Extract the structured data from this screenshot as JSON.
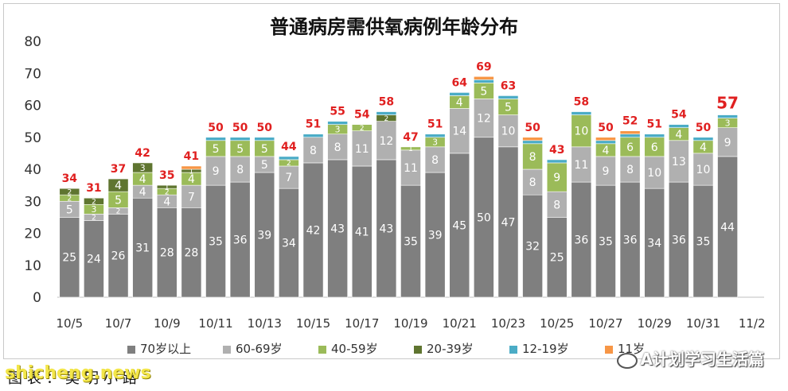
{
  "chart_data": {
    "type": "bar",
    "stacked": true,
    "title": "普通病房需供氧病例年龄分布",
    "categories": [
      "10/5",
      "10/6",
      "10/7",
      "10/8",
      "10/9",
      "10/10",
      "10/11",
      "10/12",
      "10/13",
      "10/14",
      "10/15",
      "10/16",
      "10/17",
      "10/18",
      "10/19",
      "10/20",
      "10/21",
      "10/22",
      "10/23",
      "10/24",
      "10/25",
      "10/26",
      "10/27",
      "10/28",
      "10/29",
      "10/30",
      "10/31",
      "11/1"
    ],
    "x_tick_labels": [
      "10/5",
      "10/7",
      "10/9",
      "10/11",
      "10/13",
      "10/15",
      "10/17",
      "10/19",
      "10/21",
      "10/23",
      "10/25",
      "10/27",
      "10/29",
      "10/31",
      "11/2"
    ],
    "ylim": [
      0,
      80
    ],
    "yticks": [
      0,
      10,
      20,
      30,
      40,
      50,
      60,
      70,
      80
    ],
    "grid": false,
    "legend_position": "bottom",
    "totals": [
      34,
      31,
      37,
      42,
      35,
      41,
      50,
      50,
      50,
      44,
      51,
      55,
      54,
      58,
      47,
      51,
      64,
      69,
      63,
      50,
      43,
      58,
      50,
      52,
      51,
      54,
      50,
      57
    ],
    "series": [
      {
        "name": "70岁以上",
        "color": "#7f7f7f",
        "labels": true,
        "values": [
          25,
          24,
          26,
          31,
          28,
          28,
          35,
          36,
          39,
          34,
          42,
          43,
          41,
          43,
          35,
          39,
          45,
          50,
          47,
          32,
          25,
          36,
          35,
          36,
          34,
          36,
          35,
          44
        ]
      },
      {
        "name": "60-69岁",
        "color": "#b0b0b0",
        "labels": true,
        "values": [
          5,
          2,
          2,
          4,
          4,
          7,
          9,
          8,
          5,
          7,
          8,
          8,
          11,
          12,
          11,
          8,
          14,
          12,
          10,
          8,
          8,
          11,
          9,
          8,
          10,
          13,
          10,
          9
        ]
      },
      {
        "name": "40-59岁",
        "color": "#9bbb59",
        "labels": true,
        "values": [
          2,
          3,
          5,
          4,
          2,
          4,
          5,
          5,
          5,
          2,
          0,
          3,
          2,
          0,
          1,
          3,
          4,
          5,
          5,
          8,
          9,
          10,
          4,
          6,
          6,
          4,
          4,
          3
        ]
      },
      {
        "name": "20-39岁",
        "color": "#5f7530",
        "labels": true,
        "values": [
          2,
          2,
          4,
          3,
          1,
          1,
          0,
          0,
          0,
          0,
          0,
          0,
          0,
          2,
          0,
          0,
          0,
          0,
          0,
          0,
          0,
          0,
          0,
          0,
          0,
          0,
          0,
          0
        ]
      },
      {
        "name": "12-19岁",
        "color": "#4bacc6",
        "labels": false,
        "values": [
          0,
          0,
          0,
          0,
          0,
          0,
          1,
          1,
          1,
          1,
          1,
          1,
          0,
          1,
          0,
          1,
          1,
          1,
          1,
          1,
          1,
          1,
          1,
          1,
          1,
          1,
          1,
          1
        ]
      },
      {
        "name": "11岁",
        "color": "#f79646",
        "labels": false,
        "values": [
          0,
          0,
          0,
          0,
          0,
          1,
          0,
          0,
          0,
          0,
          0,
          0,
          0,
          0,
          0,
          0,
          0,
          1,
          0,
          1,
          0,
          0,
          1,
          1,
          0,
          0,
          0,
          0
        ]
      }
    ]
  },
  "footer": {
    "source_text": "图表：吴明小路",
    "watermark_text": "shicheng.news",
    "account_text": "A计划学习生活篇",
    "account_icon": "wechat-icon"
  }
}
